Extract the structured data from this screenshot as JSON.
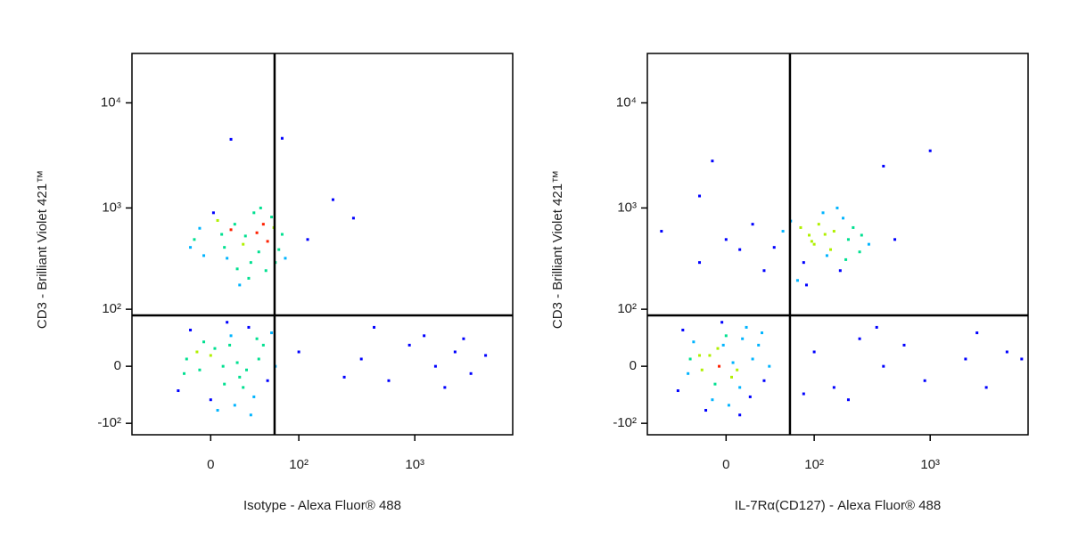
{
  "chart_data": [
    {
      "type": "scatter",
      "xscale": "biexponential",
      "yscale": "biexponential",
      "xlabel": "Isotype - Alexa Fluor® 488",
      "ylabel": "CD3 - Brilliant Violet 421™",
      "xlim": [
        -82,
        6800
      ],
      "ylim": [
        -133,
        29500
      ],
      "xticks": [
        0,
        {
          "value": 100,
          "label": "10²"
        },
        {
          "value": 1000,
          "label": "10³"
        }
      ],
      "yticks": [
        {
          "value": -100,
          "label": "-10²"
        },
        0,
        {
          "value": 100,
          "label": "10²"
        },
        {
          "value": 1000,
          "label": "10³"
        },
        {
          "value": 10000,
          "label": "10⁴"
        }
      ],
      "quadrant": {
        "x": 59,
        "y": 85
      },
      "colormap": [
        "#0000ff",
        "#00b4ff",
        "#00e090",
        "#b0f000",
        "#ff2000"
      ],
      "x": [
        27,
        10,
        45,
        -5,
        60,
        35,
        15,
        50,
        20,
        -12,
        40,
        5,
        30,
        70,
        55,
        -8,
        25,
        12,
        38,
        48,
        2,
        65,
        18,
        32,
        -15,
        42,
        8,
        58,
        22,
        75,
        9,
        -10,
        25,
        0,
        40,
        15,
        -20,
        30,
        5,
        50,
        -5,
        20,
        10,
        35,
        -15,
        45,
        0,
        28,
        12,
        -25,
        60,
        18,
        -8,
        38,
        3,
        22,
        55,
        -18,
        32,
        14,
        350,
        600,
        900,
        1500,
        2200,
        3000,
        2600,
        1800,
        450,
        4000,
        250,
        1200,
        120,
        200,
        300,
        15,
        70,
        100
      ],
      "y": [
        540,
        420,
        700,
        350,
        300,
        900,
        620,
        480,
        260,
        500,
        380,
        760,
        210,
        560,
        820,
        640,
        450,
        330,
        580,
        250,
        900,
        400,
        700,
        300,
        420,
        1000,
        560,
        650,
        180,
        330,
        0,
        20,
        -30,
        -50,
        10,
        45,
        -10,
        60,
        -70,
        -20,
        35,
        5,
        -25,
        -45,
        55,
        30,
        15,
        -5,
        70,
        -35,
        0,
        -60,
        -5,
        40,
        25,
        -15,
        50,
        10,
        -80,
        30,
        10,
        -20,
        30,
        0,
        20,
        -10,
        40,
        -30,
        60,
        15,
        -15,
        45,
        500,
        1200,
        800,
        4500,
        4600,
        20
      ]
    },
    {
      "type": "scatter",
      "xscale": "biexponential",
      "yscale": "biexponential",
      "xlabel": "IL-7Rα(CD127) - Alexa Fluor® 488",
      "ylabel": "CD3 - Brilliant Violet 421™",
      "xlim": [
        -82,
        6800
      ],
      "ylim": [
        -133,
        29500
      ],
      "xticks": [
        0,
        {
          "value": 100,
          "label": "10²"
        },
        {
          "value": 1000,
          "label": "10³"
        }
      ],
      "yticks": [
        {
          "value": -100,
          "label": "-10²"
        },
        0,
        {
          "value": 100,
          "label": "10²"
        },
        {
          "value": 1000,
          "label": "10³"
        },
        {
          "value": 10000,
          "label": "10⁴"
        }
      ],
      "quadrant": {
        "x": 59,
        "y": 85
      },
      "colormap": [
        "#0000ff",
        "#00b4ff",
        "#00e090",
        "#b0f000",
        "#ff2000"
      ],
      "x": [
        100,
        150,
        80,
        200,
        60,
        120,
        250,
        90,
        170,
        40,
        130,
        110,
        220,
        70,
        180,
        95,
        140,
        260,
        50,
        160,
        0,
        -20,
        20,
        30,
        10,
        300,
        85,
        190,
        125,
        75,
        -5,
        -20,
        10,
        -10,
        20,
        0,
        -30,
        15,
        -15,
        30,
        -25,
        5,
        -8,
        18,
        -35,
        25,
        -12,
        8,
        -3,
        -40,
        35,
        2,
        -18,
        12,
        -6,
        4,
        28,
        -28,
        10,
        -2,
        100,
        150,
        250,
        400,
        600,
        900,
        2000,
        3000,
        4500,
        2500,
        200,
        80,
        350,
        6000,
        -20,
        -60,
        500,
        400,
        1000,
        -10
      ],
      "y": [
        450,
        600,
        300,
        500,
        750,
        900,
        380,
        550,
        250,
        420,
        350,
        700,
        650,
        200,
        800,
        480,
        400,
        550,
        600,
        1000,
        500,
        300,
        700,
        250,
        400,
        450,
        180,
        320,
        560,
        650,
        0,
        15,
        -30,
        -50,
        10,
        45,
        -10,
        60,
        -70,
        -20,
        35,
        5,
        -25,
        -45,
        55,
        30,
        15,
        -5,
        70,
        -35,
        0,
        -60,
        -5,
        40,
        25,
        -15,
        50,
        10,
        -80,
        30,
        20,
        -30,
        40,
        0,
        30,
        -20,
        10,
        -30,
        20,
        50,
        -50,
        -40,
        60,
        10,
        1300,
        600,
        500,
        2500,
        3500,
        2800
      ]
    }
  ]
}
